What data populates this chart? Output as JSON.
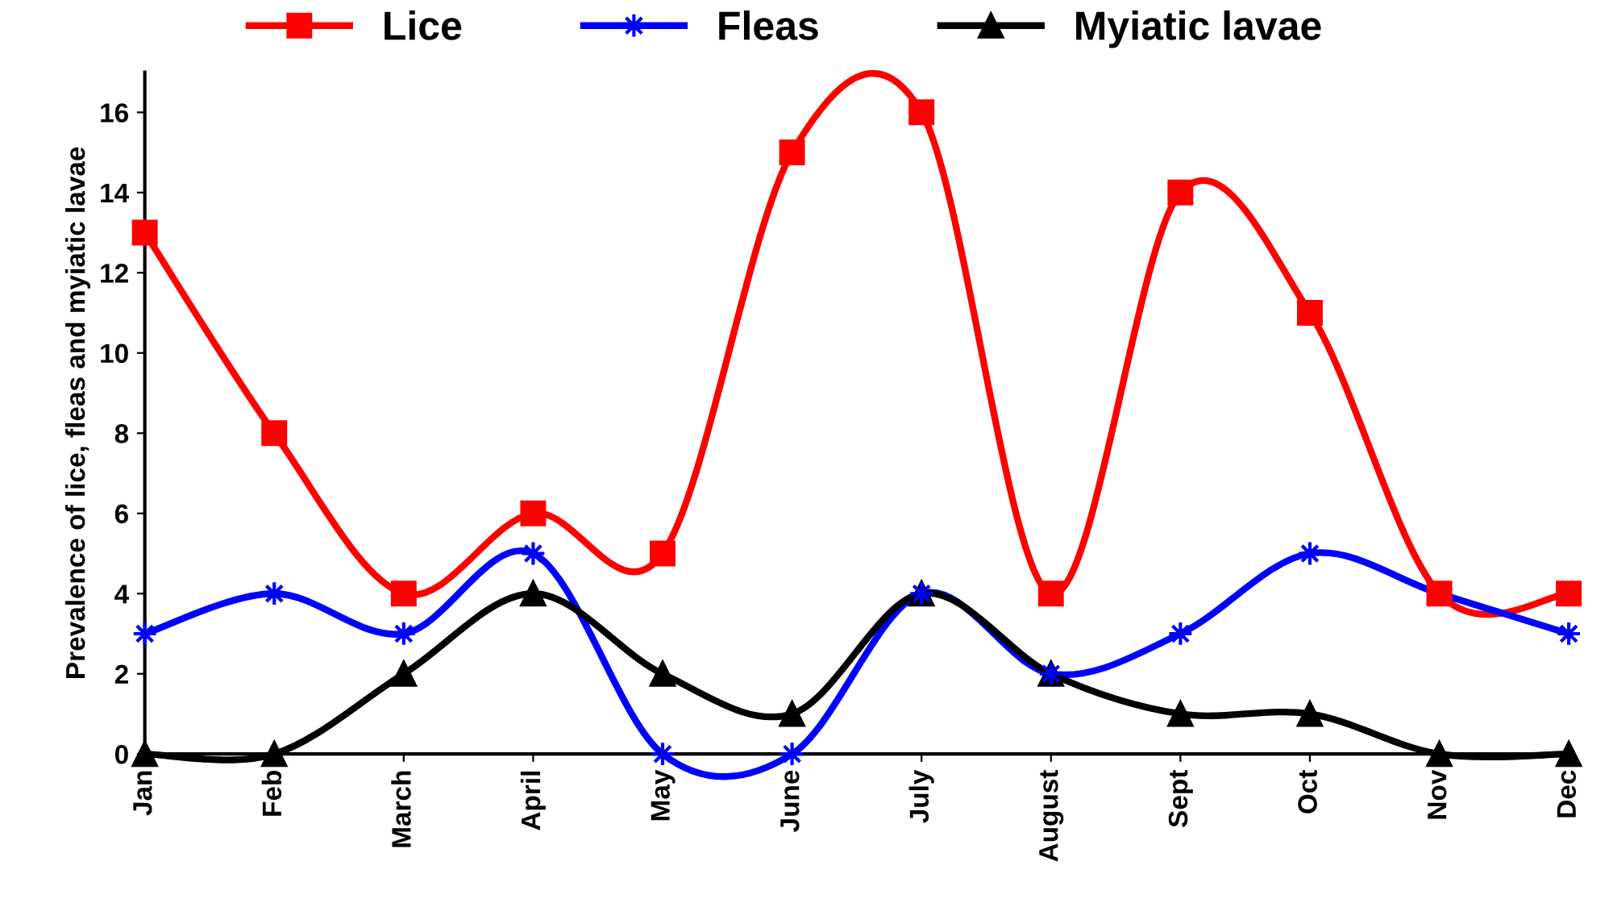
{
  "chart_data": {
    "type": "line",
    "ylabel": "Prevalence of lice, fleas and myiatic lavae",
    "categories": [
      "Jan",
      "Feb",
      "March",
      "April",
      "May",
      "June",
      "July",
      "August",
      "Sept",
      "Oct",
      "Nov",
      "Dec"
    ],
    "series": [
      {
        "name": "Lice",
        "color": "#ff0000",
        "marker": "square",
        "values": [
          13,
          8,
          4,
          6,
          5,
          15,
          16,
          4,
          14,
          11,
          4,
          4
        ]
      },
      {
        "name": "Fleas",
        "color": "#0000ff",
        "marker": "star",
        "values": [
          3,
          4,
          3,
          5,
          0,
          0,
          4,
          2,
          3,
          5,
          4,
          3
        ]
      },
      {
        "name": "Myiatic lavae",
        "color": "#000000",
        "marker": "triangle",
        "values": [
          0,
          0,
          2,
          4,
          2,
          1,
          4,
          2,
          1,
          1,
          0,
          0
        ]
      }
    ],
    "ylim": [
      0,
      17
    ],
    "yticks": [
      0,
      2,
      4,
      6,
      8,
      10,
      12,
      14,
      16
    ],
    "grid": false,
    "legend": "top",
    "line_style": "solid"
  }
}
